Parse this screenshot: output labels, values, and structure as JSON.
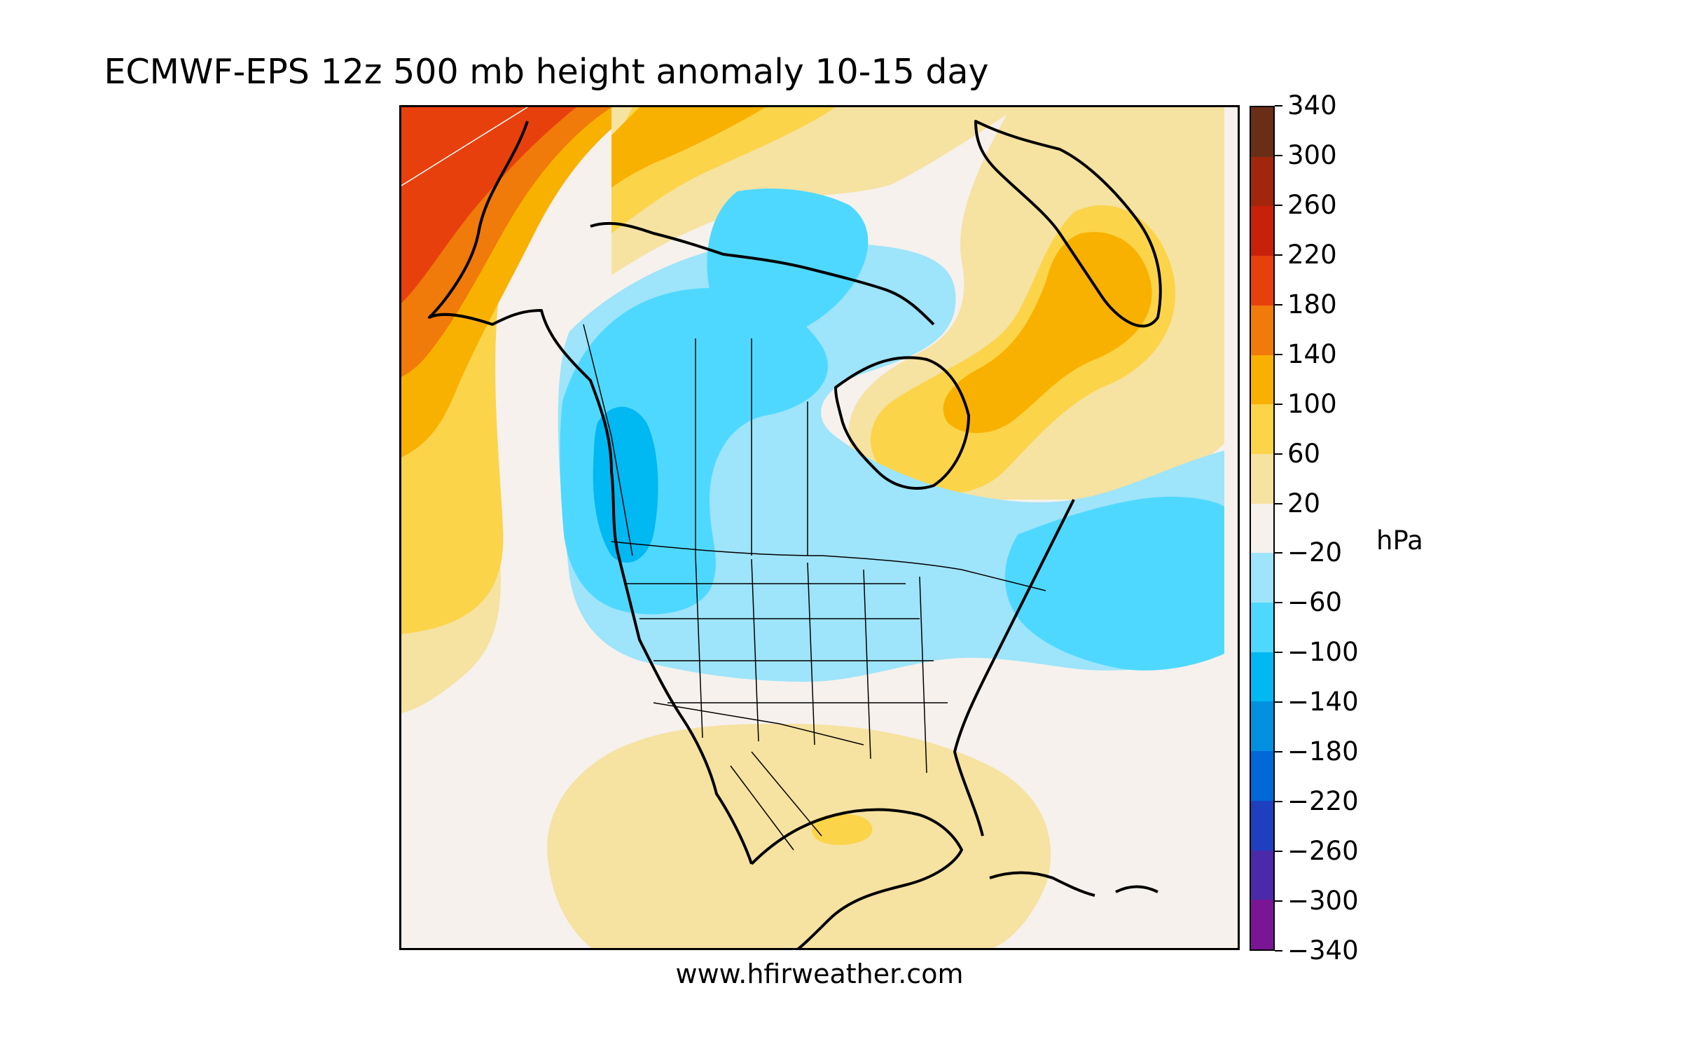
{
  "title": "ECMWF-EPS 12z 500 mb height anomaly 10-15 day",
  "credit": "www.hfirweather.com",
  "colorbar": {
    "unit": "hPa",
    "ticks": [
      "340",
      "300",
      "260",
      "220",
      "180",
      "140",
      "100",
      "60",
      "20",
      "−20",
      "−60",
      "−100",
      "−140",
      "−180",
      "−220",
      "−260",
      "−300",
      "−340"
    ],
    "levels": [
      340,
      300,
      260,
      220,
      180,
      140,
      100,
      60,
      20,
      -20,
      -60,
      -100,
      -140,
      -180,
      -220,
      -260,
      -300,
      -340
    ],
    "colors_top_to_bottom": [
      "#6a2e17",
      "#a1260c",
      "#c8200a",
      "#e8400d",
      "#f07a0a",
      "#f9b100",
      "#fbd44a",
      "#f6e2a1",
      "#f6f1ec",
      "#9ee4fa",
      "#4fd8ff",
      "#00b8f2",
      "#0090e0",
      "#0068d8",
      "#1e3fc0",
      "#4a2aa8",
      "#7a1696"
    ]
  },
  "map": {
    "region": "North America",
    "field": "500 mb height anomaly",
    "anomaly_colors": {
      "neutral": "#f6f1ec",
      "pos_20_60": "#f6e2a1",
      "pos_60_100": "#fbd44a",
      "pos_100_140": "#f9b100",
      "pos_140_180": "#f07a0a",
      "pos_180_220": "#e8400d",
      "neg_20_60": "#9ee4fa",
      "neg_60_100": "#4fd8ff",
      "neg_100_140": "#00b8f2"
    }
  }
}
